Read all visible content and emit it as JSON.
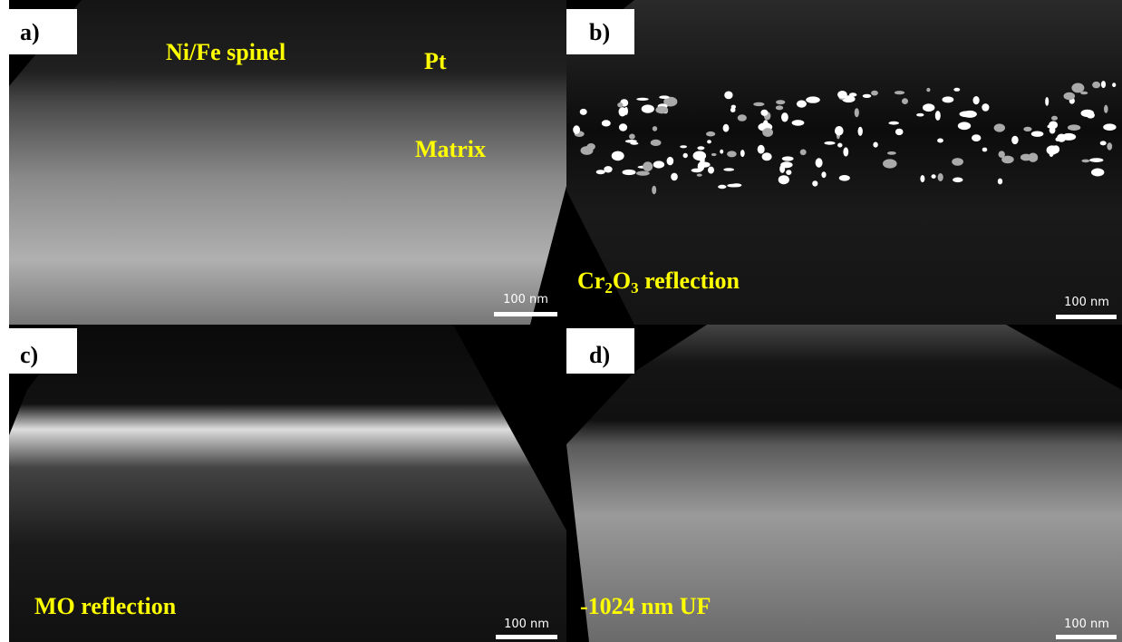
{
  "panels": [
    {
      "label": "a)",
      "annotations": [
        "Ni/Fe spinel",
        "Pt",
        "Matrix"
      ],
      "scale_bar": "100 nm"
    },
    {
      "label": "b)",
      "annotation_parts": [
        "Cr",
        "2",
        "O",
        "3",
        " reflection"
      ],
      "scale_bar": "100 nm"
    },
    {
      "label": "c)",
      "annotations": [
        "MO reflection"
      ],
      "scale_bar": "100 nm"
    },
    {
      "label": "d)",
      "annotations": [
        "-1024 nm UF"
      ],
      "scale_bar": "100 nm"
    }
  ]
}
